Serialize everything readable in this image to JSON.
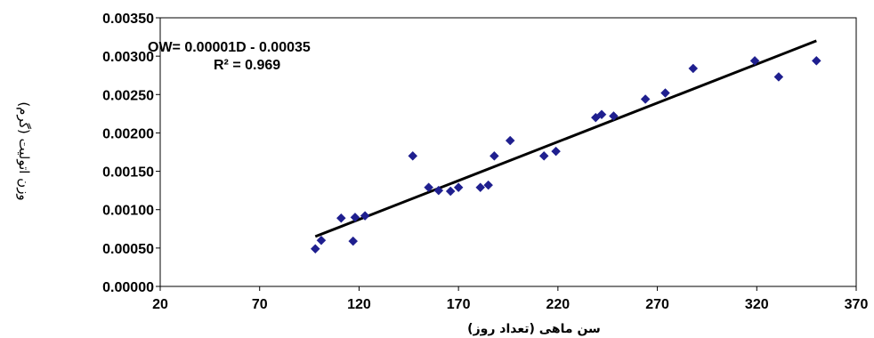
{
  "chart_data": {
    "type": "scatter",
    "xlabel": "سن ماهی (تعداد روز)",
    "ylabel": "وزن اتولیت (گرم)",
    "xlim": [
      20,
      370
    ],
    "ylim": [
      0,
      0.0035
    ],
    "xticks": [
      "20",
      "70",
      "120",
      "170",
      "220",
      "270",
      "320",
      "370"
    ],
    "yticks": [
      "0.00000",
      "0.00050",
      "0.00100",
      "0.00150",
      "0.00200",
      "0.00250",
      "0.00300",
      "0.00350"
    ],
    "grid": false,
    "marker_color": "#1f1f8f",
    "trendline_color": "#000000",
    "annotation": {
      "equation": "OW= 0.00001D - 0.00035",
      "r2": "R² = 0.969"
    },
    "trendline": {
      "x": [
        98,
        350
      ],
      "y": [
        0.00065,
        0.0032
      ]
    },
    "series": [
      {
        "x": [
          98,
          101,
          111,
          117,
          118,
          123,
          147,
          155,
          160,
          166,
          170,
          181,
          185,
          188,
          196,
          213,
          219,
          239,
          242,
          248,
          264,
          274,
          288,
          319,
          331,
          350
        ],
        "y": [
          0.00049,
          0.0006,
          0.00089,
          0.00059,
          0.0009,
          0.00092,
          0.0017,
          0.00129,
          0.00125,
          0.00124,
          0.00129,
          0.00129,
          0.00132,
          0.0017,
          0.0019,
          0.0017,
          0.00176,
          0.0022,
          0.00224,
          0.00222,
          0.00244,
          0.00252,
          0.00284,
          0.00294,
          0.00273,
          0.00294
        ]
      }
    ]
  }
}
